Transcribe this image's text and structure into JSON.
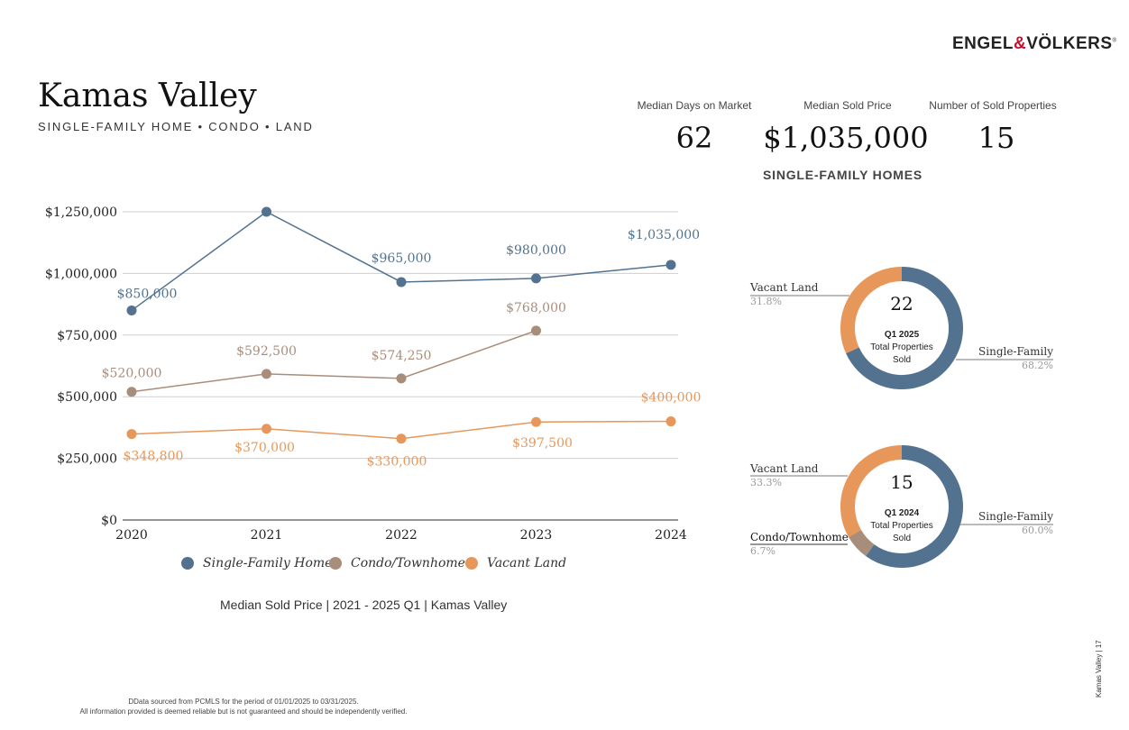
{
  "brand": {
    "name_left": "ENGEL",
    "amp": "&",
    "name_right": "VÖLKERS",
    "reg": "®"
  },
  "header": {
    "title": "Kamas Valley",
    "subtitle": "SINGLE-FAMILY HOME  •  CONDO  •  LAND"
  },
  "stats": {
    "days_label": "Median Days on Market",
    "days_value": "62",
    "price_label": "Median Sold Price",
    "price_value": "$1,035,000",
    "count_label": "Number of Sold Properties",
    "count_value": "15",
    "caption": "SINGLE-FAMILY HOMES"
  },
  "colors": {
    "single_family": "#52728f",
    "condo": "#a98d7b",
    "vacant": "#e7975a",
    "grid": "#cfcfcf",
    "axis": "#555555"
  },
  "chart_data": [
    {
      "type": "line",
      "categories": [
        "2020",
        "2021",
        "2022",
        "2023",
        "2024"
      ],
      "ylim": [
        0,
        1250000
      ],
      "yticks": [
        "$0",
        "$250,000",
        "$500,000",
        "$750,000",
        "$1,000,000",
        "$1,250,000"
      ],
      "ytick_values": [
        0,
        250000,
        500000,
        750000,
        1000000,
        1250000
      ],
      "grid": true,
      "legend": "bottom",
      "series": [
        {
          "name": "Single-Family Home",
          "values": [
            850000,
            1250000,
            965000,
            980000,
            1035000
          ],
          "labels": [
            "$850,000",
            "",
            "$965,000",
            "$980,000",
            "$1,035,000"
          ]
        },
        {
          "name": "Condo/Townhome",
          "values": [
            520000,
            592500,
            574250,
            768000,
            null
          ],
          "labels": [
            "$520,000",
            "$592,500",
            "$574,250",
            "$768,000",
            ""
          ]
        },
        {
          "name": "Vacant Land",
          "values": [
            348800,
            370000,
            330000,
            397500,
            400000
          ],
          "labels": [
            "$348,800",
            "$370,000",
            "$330,000",
            "$397,500",
            "$400,000"
          ]
        }
      ],
      "caption": "Median Sold Price  |  2021 - 2025 Q1 |  Kamas Valley"
    },
    {
      "type": "pie",
      "center_value": "22",
      "center_line1": "Q1 2025",
      "center_line2": "Total Properties",
      "center_line3": "Sold",
      "slices": [
        {
          "name": "Single-Family",
          "percent": "68.2%",
          "value": 68.2
        },
        {
          "name": "Vacant Land",
          "percent": "31.8%",
          "value": 31.8
        }
      ]
    },
    {
      "type": "pie",
      "center_value": "15",
      "center_line1": "Q1 2024",
      "center_line2": "Total Properties",
      "center_line3": "Sold",
      "slices": [
        {
          "name": "Single-Family",
          "percent": "60.0%",
          "value": 60.0
        },
        {
          "name": "Condo/Townhome",
          "percent": "6.7%",
          "value": 6.7
        },
        {
          "name": "Vacant Land",
          "percent": "33.3%",
          "value": 33.3
        }
      ]
    }
  ],
  "footer": {
    "line1": "DData sourced from PCMLS for the period of 01/01/2025 to 03/31/2025.",
    "line2": "All information provided is deemed reliable but is not guaranteed and should be independently verified."
  },
  "side_tag": "Kamas Valley | 17"
}
